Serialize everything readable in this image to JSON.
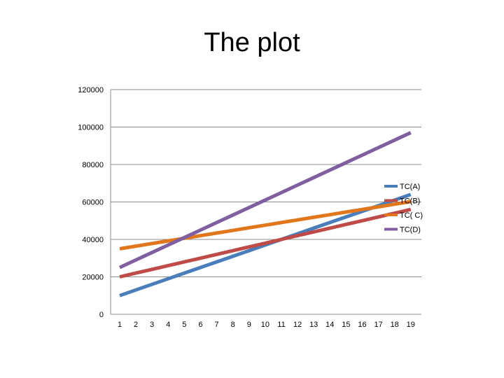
{
  "title": "The plot",
  "chart_data": {
    "type": "line",
    "title": "The plot",
    "xlabel": "",
    "ylabel": "",
    "x": [
      1,
      2,
      3,
      4,
      5,
      6,
      7,
      8,
      9,
      10,
      11,
      12,
      13,
      14,
      15,
      16,
      17,
      18,
      19
    ],
    "y_ticks": [
      "0",
      "20000",
      "40000",
      "60000",
      "80000",
      "100000",
      "120000"
    ],
    "ylim": [
      0,
      120000
    ],
    "grid": true,
    "legend_position": "right",
    "series": [
      {
        "name": "TC(A)",
        "color": "#4a7ebb",
        "values": [
          10000,
          13000,
          16000,
          19000,
          22000,
          25000,
          28000,
          31000,
          34000,
          37000,
          40000,
          43000,
          46000,
          49000,
          52000,
          55000,
          58000,
          61000,
          64000
        ]
      },
      {
        "name": "TC(B)",
        "color": "#be4b48",
        "values": [
          20000,
          22000,
          24000,
          26000,
          28000,
          30000,
          32000,
          34000,
          36000,
          38000,
          40000,
          42000,
          44000,
          46000,
          48000,
          50000,
          52000,
          54000,
          56000
        ]
      },
      {
        "name": "TC( C)",
        "color": "#e2761c",
        "values": [
          35000,
          36400,
          37800,
          39200,
          40600,
          42000,
          43400,
          44800,
          46200,
          47600,
          49000,
          50400,
          51800,
          53200,
          54600,
          56000,
          57400,
          58800,
          60200
        ]
      },
      {
        "name": "TC(D)",
        "color": "#7f5fa0",
        "values": [
          25000,
          29000,
          33000,
          37000,
          41000,
          45000,
          49000,
          53000,
          57000,
          61000,
          65000,
          69000,
          73000,
          77000,
          81000,
          85000,
          89000,
          93000,
          97000
        ]
      }
    ]
  }
}
